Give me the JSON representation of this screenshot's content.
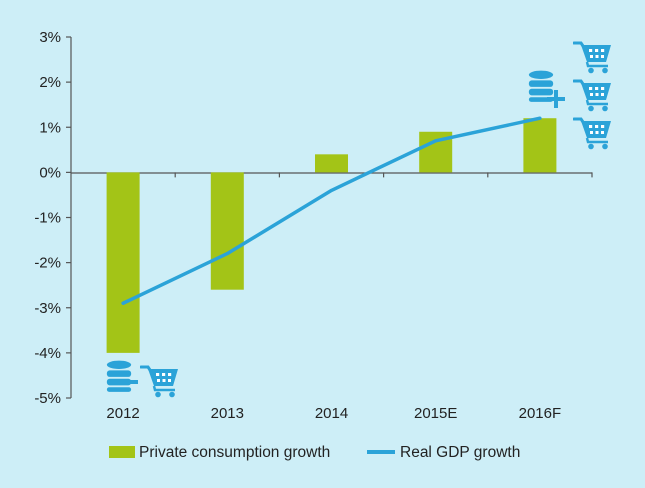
{
  "chart_data": {
    "type": "bar",
    "categories": [
      "2012",
      "2013",
      "2014",
      "2015E",
      "2016F"
    ],
    "series": [
      {
        "name": "Private consumption growth",
        "type": "bar",
        "color": "#a3c417",
        "values": [
          -4.0,
          -2.6,
          0.4,
          0.9,
          1.2
        ]
      },
      {
        "name": "Real GDP growth",
        "type": "line",
        "color": "#2ba3d8",
        "values": [
          -2.9,
          -1.8,
          -0.4,
          0.7,
          1.2
        ]
      }
    ],
    "y_ticks": [
      "3%",
      "2%",
      "1%",
      "0%",
      "-1%",
      "-2%",
      "-3%",
      "-4%",
      "-5%"
    ],
    "ylim": [
      -5,
      3
    ],
    "grid": false,
    "legend_position": "bottom"
  },
  "icons": {
    "negative_annotation": [
      "database-minus-icon",
      "shopping-cart-icon"
    ],
    "positive_annotation": [
      "database-plus-icon",
      "shopping-cart-icon",
      "shopping-cart-icon",
      "shopping-cart-icon"
    ],
    "icon_color": "#2ba3d8"
  }
}
